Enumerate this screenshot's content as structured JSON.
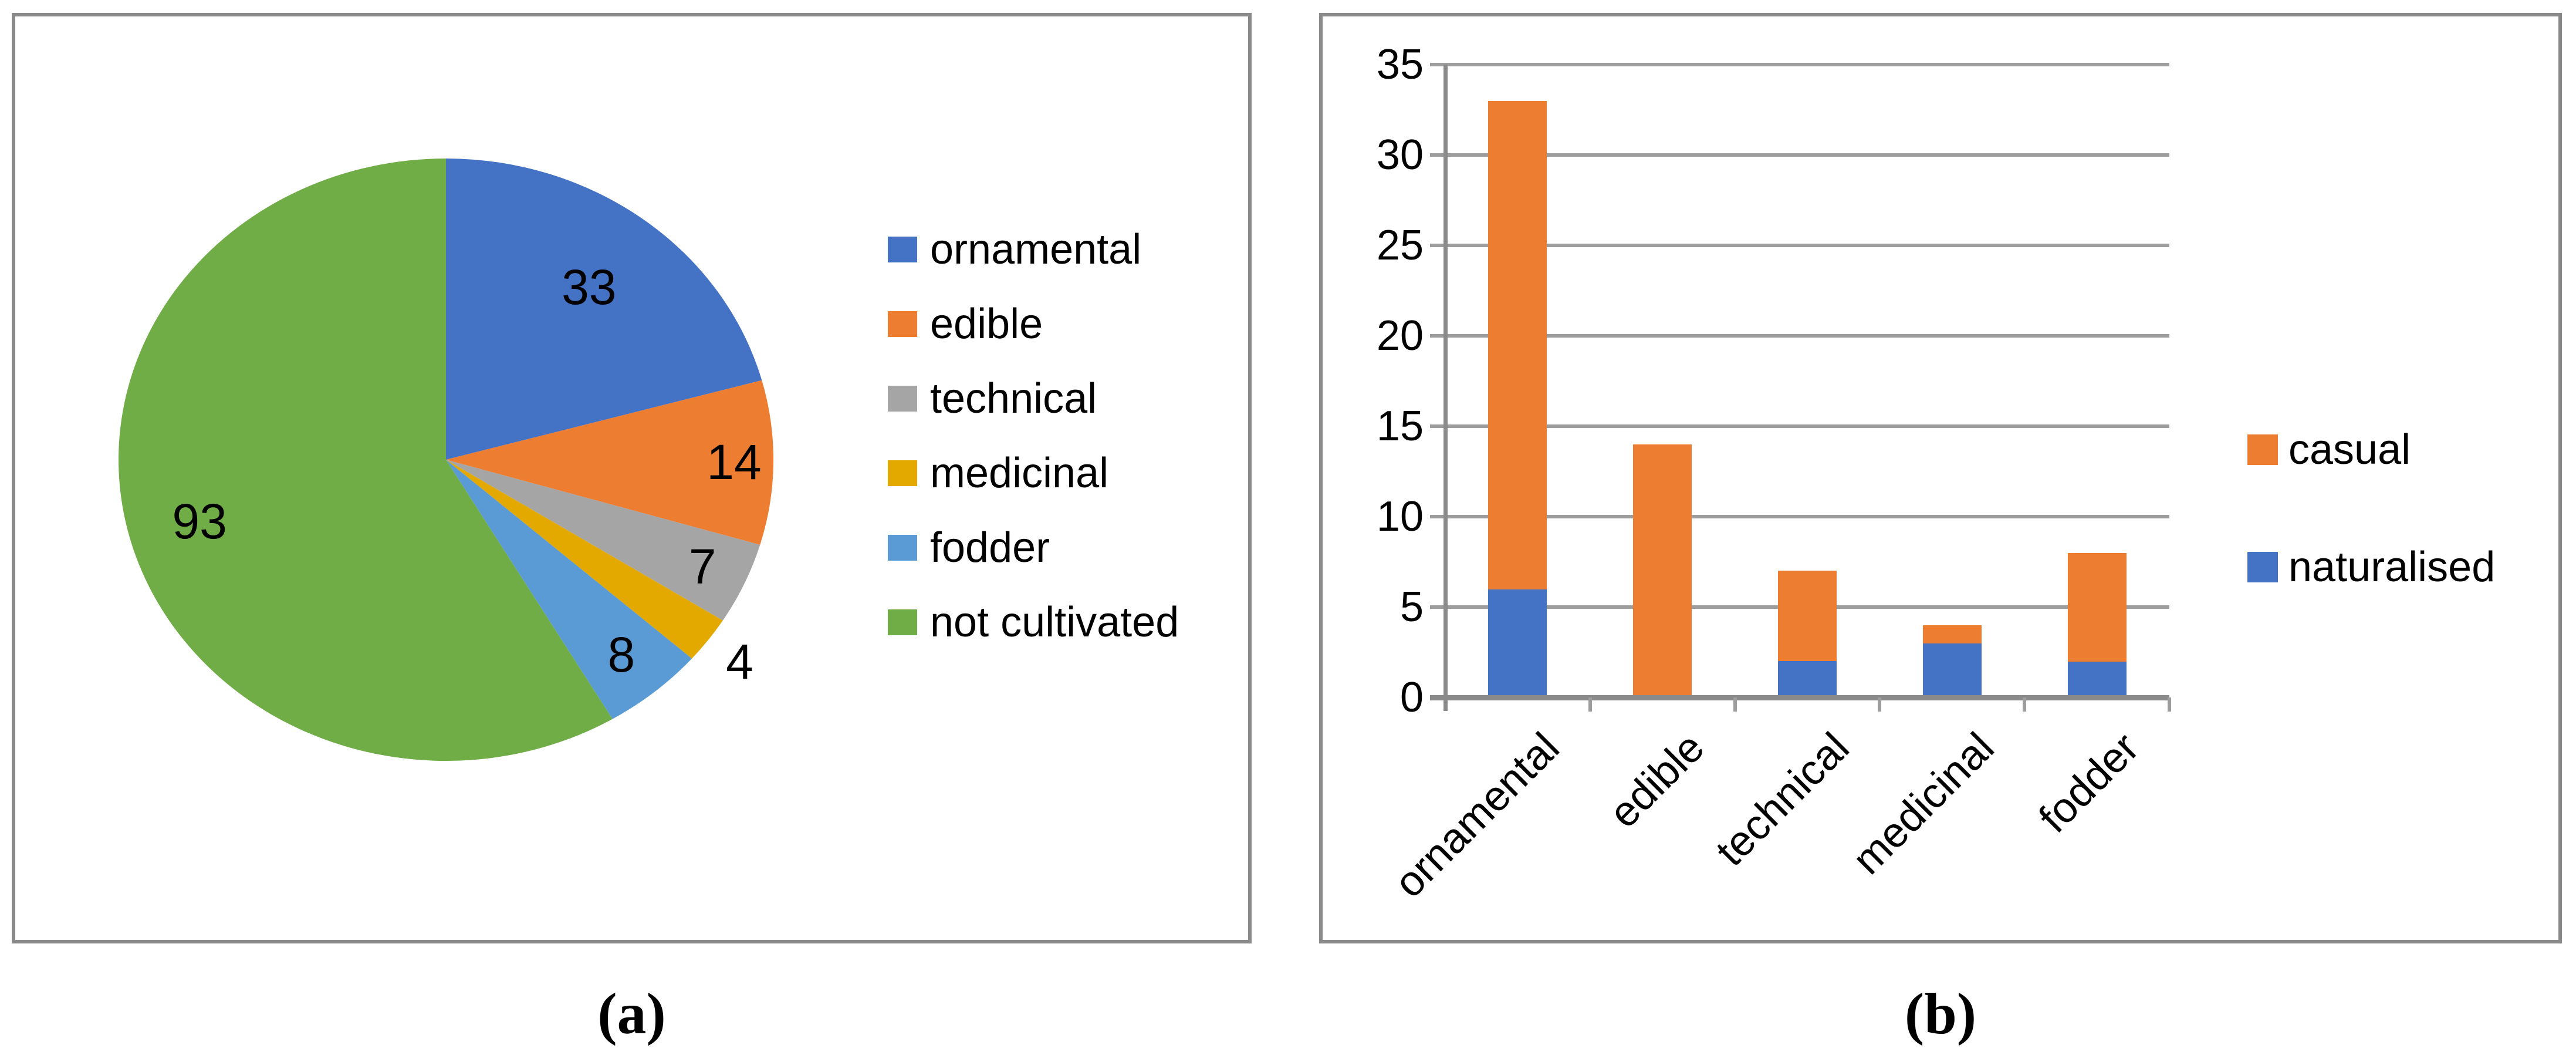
{
  "captions": {
    "a": "(a)",
    "b": "(b)"
  },
  "colors": {
    "blue": "#4472C4",
    "orange": "#ED7D31",
    "gray": "#A5A5A5",
    "gold": "#E3A900",
    "light_blue": "#5B9BD5",
    "green": "#70AD47",
    "panel_border": "#8A8A8A",
    "gridline": "#9D9D9D",
    "axis": "#8A8A8A"
  },
  "chart_data": [
    {
      "type": "pie",
      "panel": "a",
      "title": "",
      "data_labels": "values",
      "legend_position": "right",
      "start_angle_deg": 0,
      "direction": "clockwise",
      "slices": [
        {
          "label": "ornamental",
          "value": 33,
          "color": "#4472C4"
        },
        {
          "label": "edible",
          "value": 14,
          "color": "#ED7D31"
        },
        {
          "label": "technical",
          "value": 7,
          "color": "#A5A5A5"
        },
        {
          "label": "medicinal",
          "value": 4,
          "color": "#E3A900"
        },
        {
          "label": "fodder",
          "value": 8,
          "color": "#5B9BD5"
        },
        {
          "label": "not cultivated",
          "value": 93,
          "color": "#70AD47"
        }
      ]
    },
    {
      "type": "bar",
      "panel": "b",
      "stacked": true,
      "title": "",
      "xlabel": "",
      "ylabel": "",
      "categories": [
        "ornamental",
        "edible",
        "technical",
        "medicinal",
        "fodder"
      ],
      "series": [
        {
          "name": "naturalised",
          "color": "#4472C4",
          "values": [
            6,
            0,
            2,
            3,
            2
          ]
        },
        {
          "name": "casual",
          "color": "#ED7D31",
          "values": [
            27,
            14,
            5,
            1,
            6
          ]
        }
      ],
      "totals": [
        33,
        14,
        7,
        4,
        8
      ],
      "legend_order": [
        "casual",
        "naturalised"
      ],
      "legend_position": "right",
      "ylim": [
        0,
        35
      ],
      "yticks": [
        0,
        5,
        10,
        15,
        20,
        25,
        30,
        35
      ],
      "grid": "horizontal"
    }
  ]
}
